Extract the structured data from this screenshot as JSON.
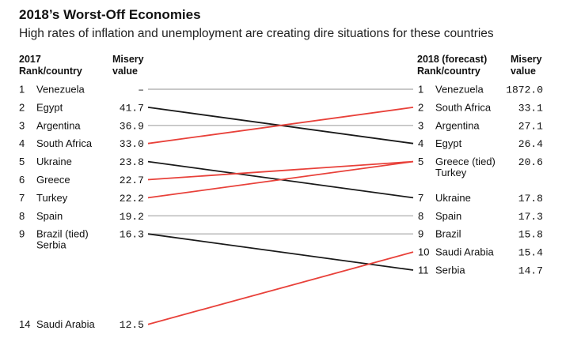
{
  "header": {
    "title": "2018’s Worst-Off Economies",
    "subtitle": "High rates of inflation and unemployment are creating dire situations for these countries",
    "left_rank_label": "2017\nRank/country",
    "left_value_label": "Misery\nvalue",
    "right_rank_label": "2018 (forecast)\nRank/country",
    "right_value_label": "Misery\nvalue"
  },
  "colors": {
    "improved": "#e8413a",
    "worsened": "#1a1a1a",
    "unchanged": "#b5b5b5"
  },
  "chart_data": {
    "type": "slope",
    "left_year": "2017",
    "right_year": "2018 (forecast)",
    "left": [
      {
        "rank": "1",
        "country": "Venezuela",
        "value": "–",
        "slot": 1
      },
      {
        "rank": "2",
        "country": "Egypt",
        "value": "41.7",
        "slot": 2
      },
      {
        "rank": "3",
        "country": "Argentina",
        "value": "36.9",
        "slot": 3
      },
      {
        "rank": "4",
        "country": "South Africa",
        "value": "33.0",
        "slot": 4
      },
      {
        "rank": "5",
        "country": "Ukraine",
        "value": "23.8",
        "slot": 5
      },
      {
        "rank": "6",
        "country": "Greece",
        "value": "22.7",
        "slot": 6
      },
      {
        "rank": "7",
        "country": "Turkey",
        "value": "22.2",
        "slot": 7
      },
      {
        "rank": "8",
        "country": "Spain",
        "value": "19.2",
        "slot": 8
      },
      {
        "rank": "9",
        "country": "Brazil (tied)\nSerbia",
        "value": "16.3",
        "slot": 9
      },
      {
        "rank": "14",
        "country": "Saudi Arabia",
        "value": "12.5",
        "slot": 14
      }
    ],
    "right": [
      {
        "rank": "1",
        "country": "Venezuela",
        "value": "1872.0",
        "slot": 1
      },
      {
        "rank": "2",
        "country": "South Africa",
        "value": "33.1",
        "slot": 2
      },
      {
        "rank": "3",
        "country": "Argentina",
        "value": "27.1",
        "slot": 3
      },
      {
        "rank": "4",
        "country": "Egypt",
        "value": "26.4",
        "slot": 4
      },
      {
        "rank": "5",
        "country": "Greece (tied)\nTurkey",
        "value": "20.6",
        "slot": 5
      },
      {
        "rank": "7",
        "country": "Ukraine",
        "value": "17.8",
        "slot": 7
      },
      {
        "rank": "8",
        "country": "Spain",
        "value": "17.3",
        "slot": 8
      },
      {
        "rank": "9",
        "country": "Brazil",
        "value": "15.8",
        "slot": 9
      },
      {
        "rank": "10",
        "country": "Saudi Arabia",
        "value": "15.4",
        "slot": 10
      },
      {
        "rank": "11",
        "country": "Serbia",
        "value": "14.7",
        "slot": 11
      }
    ],
    "links": [
      {
        "from": 1,
        "to": 1,
        "change": "unchanged"
      },
      {
        "from": 2,
        "to": 4,
        "change": "worsened"
      },
      {
        "from": 3,
        "to": 3,
        "change": "unchanged"
      },
      {
        "from": 4,
        "to": 2,
        "change": "improved"
      },
      {
        "from": 5,
        "to": 7,
        "change": "worsened"
      },
      {
        "from": 6,
        "to": 5,
        "change": "improved"
      },
      {
        "from": 7,
        "to": 5,
        "change": "improved"
      },
      {
        "from": 8,
        "to": 8,
        "change": "unchanged"
      },
      {
        "from": 9,
        "to": 9,
        "change": "unchanged"
      },
      {
        "from": 9,
        "to": 11,
        "change": "worsened"
      },
      {
        "from": 14,
        "to": 10,
        "change": "improved"
      }
    ]
  }
}
